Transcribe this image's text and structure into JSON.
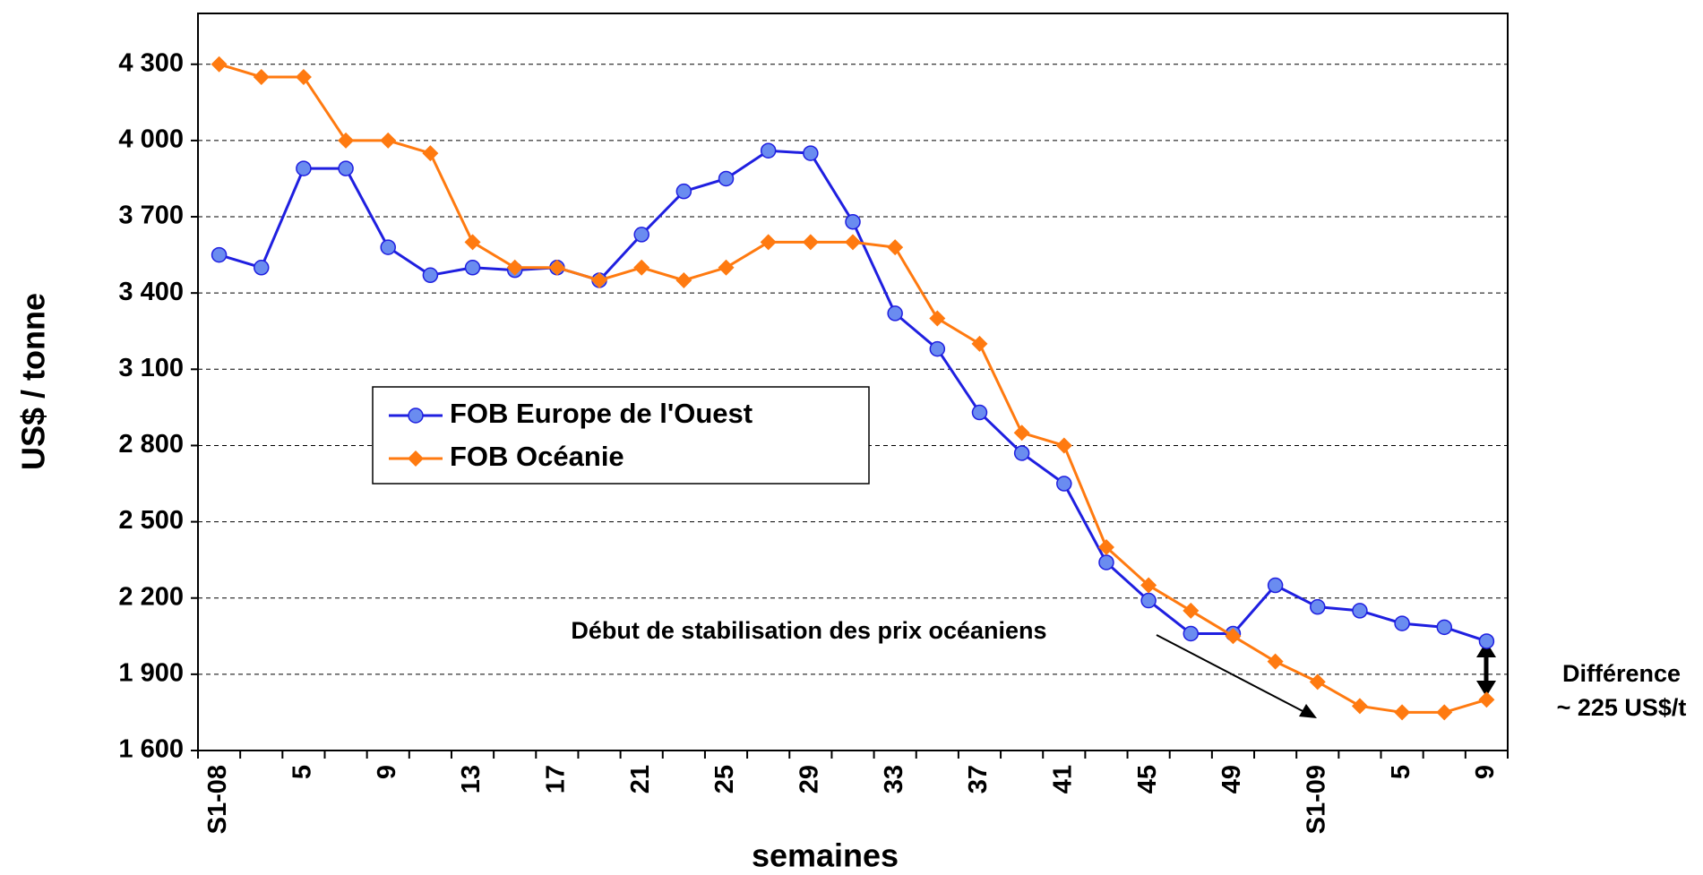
{
  "chart_data": {
    "type": "line",
    "y_label": "US$ / tonne",
    "x_label": "semaines",
    "categories": [
      "S1-08",
      null,
      "5",
      null,
      "9",
      null,
      "13",
      null,
      "17",
      null,
      "21",
      null,
      "25",
      null,
      "29",
      null,
      "33",
      null,
      "37",
      null,
      "41",
      null,
      "45",
      null,
      "49",
      null,
      "S1-09",
      null,
      "5",
      null,
      "9"
    ],
    "series": [
      {
        "name": "FOB Europe de l'Ouest",
        "color": "#1f1fe0",
        "marker": "circle",
        "marker_color": "#6a8cf0",
        "values": [
          3550,
          3500,
          3890,
          3890,
          3580,
          3470,
          3500,
          3490,
          3500,
          3450,
          3630,
          3800,
          3850,
          3960,
          3950,
          3680,
          3320,
          3180,
          2930,
          2770,
          2650,
          2340,
          2190,
          2060,
          2060,
          2250,
          2165,
          2150,
          2100,
          2085,
          2030
        ]
      },
      {
        "name": "FOB Océanie",
        "color": "#ff7a10",
        "marker": "diamond",
        "marker_color": "#ff7a10",
        "values": [
          4300,
          4250,
          4250,
          4000,
          4000,
          3950,
          3600,
          3500,
          3500,
          3450,
          3500,
          3450,
          3500,
          3600,
          3600,
          3600,
          3580,
          3300,
          3200,
          2850,
          2800,
          2400,
          2250,
          2150,
          2050,
          1950,
          1870,
          1775,
          1750,
          1750,
          1800
        ]
      }
    ],
    "ylim": [
      1600,
      4500
    ],
    "yticks": [
      {
        "value": 1600,
        "label": "1 600"
      },
      {
        "value": 1900,
        "label": "1 900"
      },
      {
        "value": 2200,
        "label": "2 200"
      },
      {
        "value": 2500,
        "label": "2 500"
      },
      {
        "value": 2800,
        "label": "2 800"
      },
      {
        "value": 3100,
        "label": "3 100"
      },
      {
        "value": 3400,
        "label": "3 400"
      },
      {
        "value": 3700,
        "label": "3 700"
      },
      {
        "value": 4000,
        "label": "4 000"
      },
      {
        "value": 4300,
        "label": "4 300"
      }
    ],
    "grid": true,
    "legend": "center-left",
    "annotations": [
      "Début de stabilisation des prix océaniens",
      "Différence",
      "~ 225 US$/t"
    ]
  }
}
